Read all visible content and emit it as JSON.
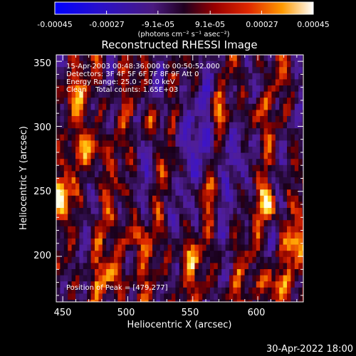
{
  "colorbar": {
    "tick_labels": [
      "-0.00045",
      "-0.00027",
      "-9.1e-05",
      "9.1e-05",
      "0.00027",
      "0.00045"
    ],
    "units_label": "(photons cm⁻² s⁻¹ asec⁻²)",
    "range": [
      -0.00045,
      0.00045
    ],
    "colors": [
      "#0000ff",
      "#3a00b8",
      "#5a1aa0",
      "#2a0050",
      "#8a0000",
      "#e03000",
      "#ff8000",
      "#ffd000",
      "#ffffff"
    ]
  },
  "header": {
    "title": "Reconstructed RHESSI Image",
    "info_line1": "15-Apr-2003 00:48:36.000 to 00:50:52.000",
    "info_line2": "Detectors: 3F 4F 5F 6F 7F 8F 9F Att 0",
    "info_line3": "Energy Range: 25.0 - 50.0 keV",
    "info_line4": "Clean    Total counts: 1.65E+03",
    "peak_text": "Position of Peak = [479,277]"
  },
  "footer": {
    "timestamp": "30-Apr-2022 18:00"
  },
  "chart_data": {
    "type": "heatmap",
    "title": "Reconstructed RHESSI Image",
    "xlabel": "Heliocentric X (arcsec)",
    "ylabel": "Heliocentric Y (arcsec)",
    "xlim": [
      445,
      635
    ],
    "ylim": [
      165,
      355
    ],
    "xticks": [
      450,
      500,
      550,
      600
    ],
    "yticks": [
      200,
      250,
      300,
      350
    ],
    "peak": [
      479,
      277
    ],
    "hot_spots": [
      {
        "x": 473,
        "y": 282,
        "intensity": 0.95
      },
      {
        "x": 449,
        "y": 247,
        "intensity": 0.92
      },
      {
        "x": 520,
        "y": 302,
        "intensity": 0.8
      },
      {
        "x": 570,
        "y": 312,
        "intensity": 0.7
      },
      {
        "x": 608,
        "y": 240,
        "intensity": 0.9
      },
      {
        "x": 596,
        "y": 310,
        "intensity": 0.75
      },
      {
        "x": 457,
        "y": 325,
        "intensity": 0.7
      },
      {
        "x": 505,
        "y": 215,
        "intensity": 0.72
      },
      {
        "x": 545,
        "y": 200,
        "intensity": 0.65
      },
      {
        "x": 628,
        "y": 210,
        "intensity": 0.8
      },
      {
        "x": 488,
        "y": 185,
        "intensity": 0.7
      },
      {
        "x": 610,
        "y": 180,
        "intensity": 0.8
      },
      {
        "x": 560,
        "y": 250,
        "intensity": 0.6
      },
      {
        "x": 533,
        "y": 270,
        "intensity": 0.55
      }
    ]
  }
}
